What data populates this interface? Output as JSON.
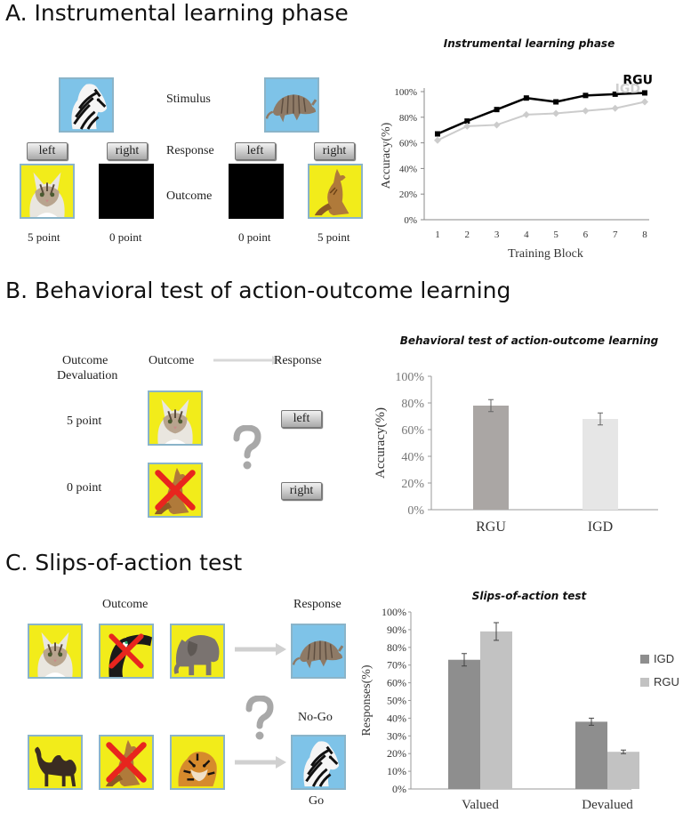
{
  "sections": {
    "a_title": "A.   Instrumental learning phase",
    "b_title": "B. Behavioral test of action-outcome learning",
    "c_title": "C. Slips-of-action test"
  },
  "panel_a": {
    "row_labels": {
      "stimulus": "Stimulus",
      "response": "Response",
      "outcome": "Outcome"
    },
    "buttons": [
      "left",
      "right",
      "left",
      "right"
    ],
    "points": [
      "5 point",
      "0 point",
      "0 point",
      "5 point"
    ],
    "icons": [
      "zebra-icon",
      "armadillo-icon",
      "cat-icon",
      "kangaroo-icon"
    ]
  },
  "panel_b": {
    "headers": {
      "devaluation_line1": "Outcome",
      "devaluation_line2": "Devaluation",
      "outcome": "Outcome",
      "response": "Response"
    },
    "points": [
      "5 point",
      "0 point"
    ],
    "buttons": [
      "left",
      "right"
    ],
    "question": "?"
  },
  "panel_c": {
    "headers": {
      "outcome": "Outcome",
      "response": "Response"
    },
    "labels": {
      "nogo": "No-Go",
      "go": "Go"
    },
    "question": "?"
  },
  "colors": {
    "yellow_bg": "#f2ec1a",
    "blue_bg": "#7ec3e8",
    "rgu_line": "#000000",
    "igd_line": "#cccccc",
    "red_cross": "#e8251e"
  },
  "chart_data": [
    {
      "type": "line",
      "title": "Instrumental learning phase",
      "xlabel": "Training Block",
      "ylabel": "Accuracy(%)",
      "x": [
        1,
        2,
        3,
        4,
        5,
        6,
        7,
        8
      ],
      "ylim": [
        0,
        100
      ],
      "yticks": [
        "0%",
        "20%",
        "40%",
        "60%",
        "80%",
        "100%"
      ],
      "series": [
        {
          "name": "RGU",
          "values": [
            67,
            77,
            86,
            95,
            92,
            97,
            98,
            99
          ]
        },
        {
          "name": "IGD",
          "values": [
            62,
            73,
            74,
            82,
            83,
            85,
            87,
            92
          ]
        }
      ]
    },
    {
      "type": "bar",
      "title": "Behavioral test of action-outcome learning",
      "ylabel": "Accuracy(%)",
      "categories": [
        "RGU",
        "IGD"
      ],
      "values": [
        78,
        68
      ],
      "errors": [
        4.5,
        4.5
      ],
      "ylim": [
        0,
        100
      ],
      "yticks": [
        "0%",
        "20%",
        "40%",
        "60%",
        "80%",
        "100%"
      ]
    },
    {
      "type": "bar",
      "title": "Slips-of-action test",
      "ylabel": "Responses(%)",
      "categories": [
        "Valued",
        "Devalued"
      ],
      "series": [
        {
          "name": "IGD",
          "values": [
            73,
            38
          ],
          "errors": [
            3.5,
            2
          ]
        },
        {
          "name": "RGU",
          "values": [
            89,
            21
          ],
          "errors": [
            5,
            1
          ]
        }
      ],
      "ylim": [
        0,
        100
      ],
      "yticks": [
        "0%",
        "10%",
        "20%",
        "30%",
        "40%",
        "50%",
        "60%",
        "70%",
        "80%",
        "90%",
        "100%"
      ],
      "legend": "right"
    }
  ]
}
